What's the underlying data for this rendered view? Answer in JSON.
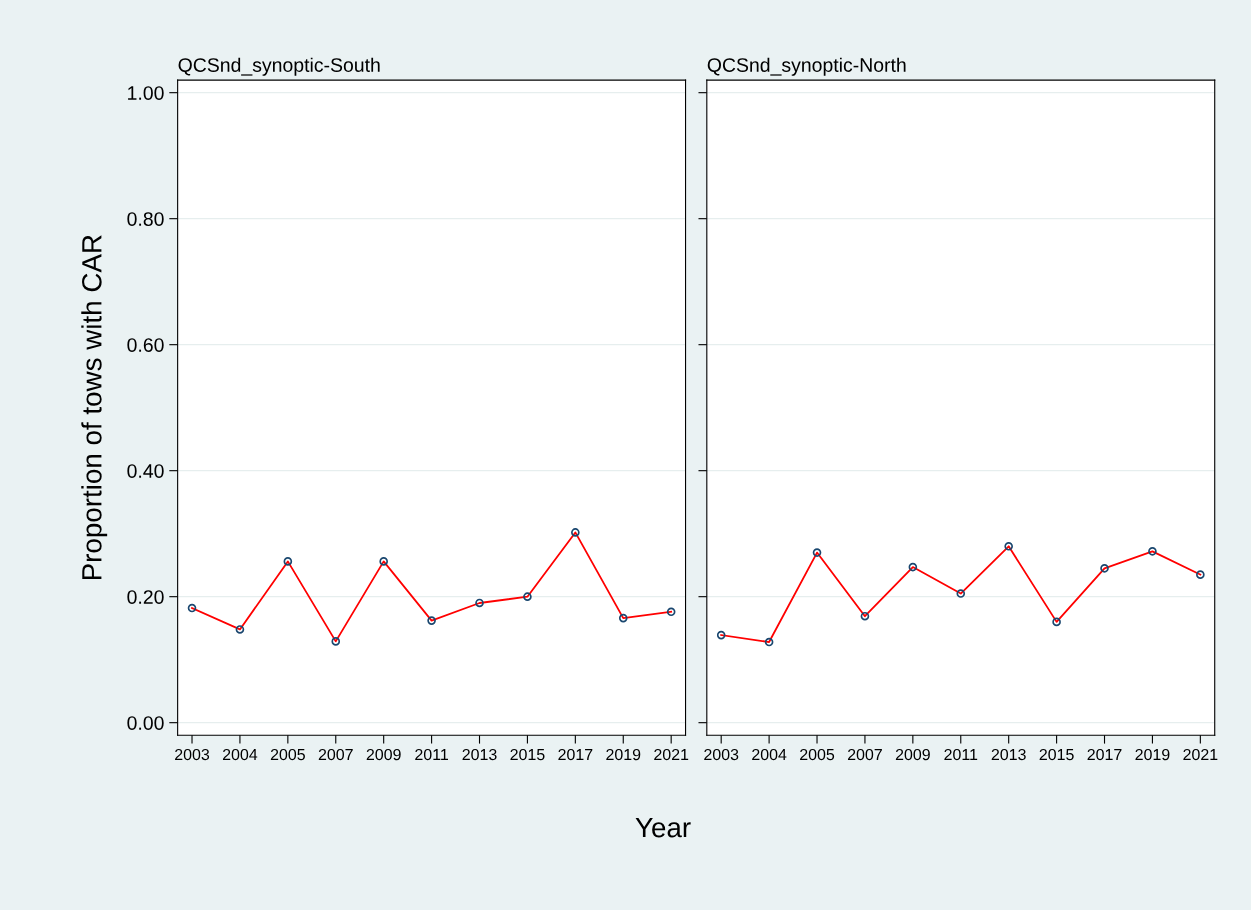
{
  "chart_data": [
    {
      "type": "line",
      "title": "QCSnd_synoptic-South",
      "xlabel": "Year",
      "ylabel": "Proportion of tows with CAR",
      "categories": [
        "2003",
        "2004",
        "2005",
        "2007",
        "2009",
        "2011",
        "2013",
        "2015",
        "2017",
        "2019",
        "2021"
      ],
      "series": [
        {
          "color": "#ff0000",
          "values": [
            0.182,
            0.148,
            0.256,
            0.129,
            0.256,
            0.162,
            0.19,
            0.2,
            0.302,
            0.166,
            0.176
          ]
        }
      ],
      "ylim": [
        -0.02,
        1.02
      ],
      "yticks": [
        {
          "value": 0,
          "label": "0.00"
        },
        {
          "value": 0.2,
          "label": "0.20"
        },
        {
          "value": 0.4,
          "label": "0.40"
        },
        {
          "value": 0.6,
          "label": "0.60"
        },
        {
          "value": 0.8,
          "label": "0.80"
        },
        {
          "value": 1,
          "label": "1.00"
        }
      ],
      "grid": "y",
      "marker": "circle",
      "line_style": "solid"
    },
    {
      "type": "line",
      "title": "QCSnd_synoptic-North",
      "categories": [
        "2003",
        "2004",
        "2005",
        "2007",
        "2009",
        "2011",
        "2013",
        "2015",
        "2017",
        "2019",
        "2021"
      ],
      "series": [
        {
          "color": "#ff0000",
          "values": [
            0.139,
            0.128,
            0.27,
            0.169,
            0.247,
            0.205,
            0.28,
            0.16,
            0.245,
            0.272,
            0.235
          ]
        }
      ],
      "ylim": [
        -0.02,
        1.02
      ],
      "yticks": [
        {
          "value": 0,
          "label": null
        },
        {
          "value": 0.2,
          "label": null
        },
        {
          "value": 0.4,
          "label": null
        },
        {
          "value": 0.6,
          "label": null
        },
        {
          "value": 0.8,
          "label": null
        },
        {
          "value": 1,
          "label": null
        }
      ],
      "tick_labels": "x",
      "grid": "y",
      "marker": "circle",
      "line_style": "solid"
    }
  ]
}
